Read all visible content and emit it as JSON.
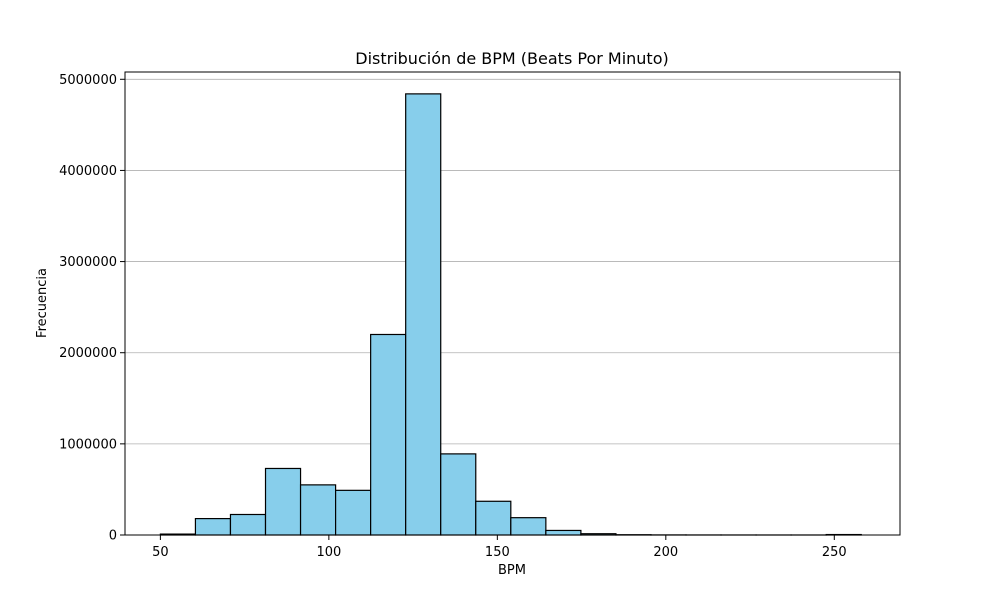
{
  "chart_data": {
    "type": "bar",
    "title": "Distribución de BPM (Beats Por Minuto)",
    "xlabel": "BPM",
    "ylabel": "Frecuencia",
    "xlim": [
      39.5,
      269.5
    ],
    "ylim": [
      0,
      5080000
    ],
    "x_ticks": [
      50,
      100,
      150,
      200,
      250
    ],
    "y_ticks": [
      0,
      1000000,
      2000000,
      3000000,
      4000000,
      5000000
    ],
    "bin_edges": [
      50,
      60.4,
      70.8,
      81.2,
      91.6,
      102,
      112.4,
      122.8,
      133.2,
      143.6,
      154,
      164.4,
      174.8,
      185.2,
      195.6,
      206,
      216.4,
      226.8,
      237.2,
      247.6,
      258
    ],
    "values": [
      10000,
      180000,
      225000,
      730000,
      550000,
      490000,
      2200000,
      4840000,
      890000,
      370000,
      190000,
      50000,
      14000,
      3000,
      1000,
      500,
      300,
      200,
      150,
      5000
    ],
    "bar_color": "#87ceeb",
    "edge_color": "#000000",
    "grid": "y",
    "grid_color": "#b0b0b0"
  }
}
